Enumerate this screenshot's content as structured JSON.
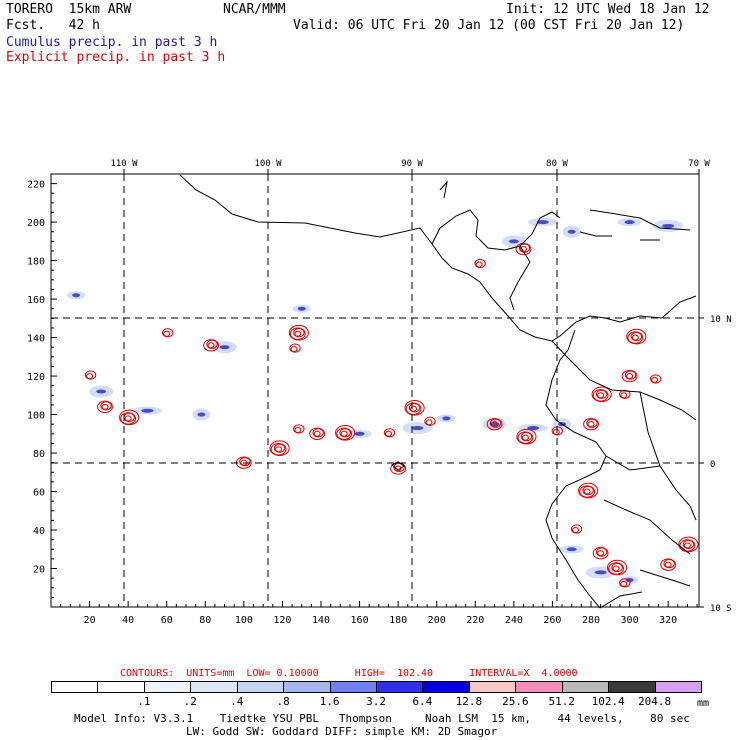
{
  "header": {
    "model": "TORERO  15km ARW",
    "org": "NCAR/MMM",
    "init": "Init: 12 UTC Wed 18 Jan 12",
    "fcst": "Fcst.   42 h",
    "valid": "Valid: 06 UTC Fri 20 Jan 12 (00 CST Fri 20 Jan 12)",
    "legend_cumulus": "Cumulus precip. in past 3 h",
    "legend_explicit": "Explicit precip. in past 3 h"
  },
  "colors": {
    "cumulus": "#3030c0",
    "explicit": "#e00000",
    "land": "#000000"
  },
  "axes": {
    "x_ticks": [
      "20",
      "40",
      "60",
      "80",
      "100",
      "120",
      "140",
      "160",
      "180",
      "200",
      "220",
      "240",
      "260",
      "280",
      "300",
      "320"
    ],
    "y_ticks": [
      "20",
      "40",
      "60",
      "80",
      "100",
      "120",
      "140",
      "160",
      "180",
      "200",
      "220"
    ],
    "lon_labels": [
      "110 W",
      "100 W",
      "90 W",
      "80 W",
      "70 W"
    ],
    "lat_labels": [
      "10 N",
      "0",
      "10 S"
    ]
  },
  "contours_line": {
    "text": "CONTOURS:  UNITS=mm  LOW= 0.10000      HIGH=  102.40      INTERVAL=X  4.0000"
  },
  "colorbar": {
    "labels": [
      ".1",
      ".2",
      ".4",
      ".8",
      "1.6",
      "3.2",
      "6.4",
      "12.8",
      "25.6",
      "51.2",
      "102.4",
      "204.8"
    ],
    "unit": "mm",
    "colors": [
      "#ffffff",
      "#ffffff",
      "#eef3fb",
      "#dde8f6",
      "#c6d6f2",
      "#a8b6ee",
      "#7080ec",
      "#3030e8",
      "#0000e0",
      "#f8c8c8",
      "#f090b8",
      "#b8b8b8",
      "#3a3a3a",
      "#d8a0f0"
    ]
  },
  "footer": {
    "line1": "Model Info: V3.3.1    Tiedtke YSU PBL   Thompson     Noah LSM  15 km,    44 levels,    80 sec",
    "line2": "LW: Godd SW: Goddard DIFF: simple KM: 2D Smagor"
  },
  "precip_features": {
    "cumulus": [
      [
        13,
        162
      ],
      [
        26,
        112
      ],
      [
        50,
        102
      ],
      [
        78,
        100
      ],
      [
        160,
        90
      ],
      [
        190,
        93
      ],
      [
        205,
        98
      ],
      [
        230,
        95
      ],
      [
        250,
        93
      ],
      [
        265,
        95
      ],
      [
        270,
        30
      ],
      [
        285,
        18
      ],
      [
        300,
        14
      ],
      [
        240,
        190
      ],
      [
        255,
        200
      ],
      [
        270,
        195
      ],
      [
        300,
        200
      ],
      [
        320,
        198
      ],
      [
        130,
        155
      ],
      [
        90,
        135
      ]
    ],
    "explicit": [
      [
        20,
        120
      ],
      [
        28,
        104
      ],
      [
        40,
        98
      ],
      [
        60,
        142
      ],
      [
        83,
        136
      ],
      [
        128,
        142
      ],
      [
        126,
        134
      ],
      [
        100,
        75
      ],
      [
        118,
        82
      ],
      [
        128,
        92
      ],
      [
        138,
        90
      ],
      [
        152,
        90
      ],
      [
        175,
        90
      ],
      [
        180,
        72
      ],
      [
        188,
        103
      ],
      [
        196,
        96
      ],
      [
        230,
        95
      ],
      [
        246,
        88
      ],
      [
        262,
        91
      ],
      [
        280,
        95
      ],
      [
        285,
        110
      ],
      [
        297,
        110
      ],
      [
        300,
        120
      ],
      [
        278,
        60
      ],
      [
        272,
        40
      ],
      [
        285,
        28
      ],
      [
        293,
        20
      ],
      [
        297,
        12
      ],
      [
        320,
        22
      ],
      [
        330,
        32
      ],
      [
        222,
        178
      ],
      [
        245,
        186
      ],
      [
        303,
        140
      ],
      [
        313,
        118
      ]
    ]
  }
}
